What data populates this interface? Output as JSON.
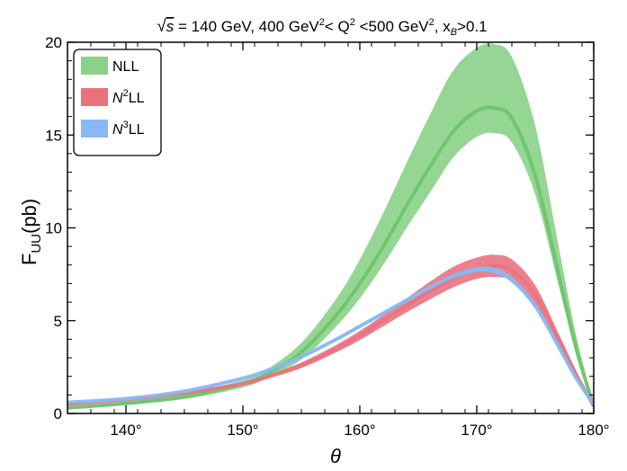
{
  "chart_data": {
    "type": "area",
    "title_parts": {
      "root": "√",
      "s": "s",
      "energy": " = 140 GeV, 400 GeV",
      "sup1": "2",
      "mid": "< Q",
      "sup2": "2",
      "mid2": " <500 GeV",
      "sup3": "2",
      "comma": ", x",
      "sub": "B",
      "tail": ">0.1"
    },
    "xlabel": "θ",
    "ylabel_main": "F",
    "ylabel_sub": "UU",
    "ylabel_tail": "(pb)",
    "xlim": [
      135,
      180
    ],
    "ylim": [
      0,
      20
    ],
    "x_ticks": [
      140,
      150,
      160,
      170,
      180
    ],
    "x_tick_labels": [
      "140°",
      "150°",
      "160°",
      "170°",
      "180°"
    ],
    "y_ticks": [
      0,
      5,
      10,
      15,
      20
    ],
    "y_tick_labels": [
      "0",
      "5",
      "10",
      "15",
      "20"
    ],
    "legend_position": "top-left",
    "series": [
      {
        "name": "NLL",
        "name_main": "NLL",
        "name_sup": "",
        "name_tail": "",
        "color": "#6cc46a",
        "fill_color": "#8bd189",
        "x": [
          135,
          140,
          145,
          150,
          152,
          155,
          158,
          160,
          162,
          164,
          166,
          168,
          170,
          171.5,
          173,
          175,
          177,
          178.5,
          180
        ],
        "central": [
          0.3,
          0.55,
          0.9,
          1.6,
          2.1,
          3.3,
          5.3,
          7.0,
          9.0,
          11.2,
          13.3,
          15.2,
          16.3,
          16.45,
          15.9,
          12.8,
          7.5,
          3.5,
          0.4
        ],
        "upper": [
          0.38,
          0.65,
          1.05,
          1.8,
          2.35,
          3.8,
          6.2,
          8.3,
          10.8,
          13.5,
          16.1,
          18.5,
          19.7,
          19.9,
          19.2,
          15.5,
          9.0,
          4.2,
          0.5
        ],
        "lower": [
          0.22,
          0.45,
          0.78,
          1.4,
          1.9,
          2.9,
          4.7,
          6.2,
          8.0,
          10.0,
          11.9,
          13.8,
          14.9,
          15.1,
          14.6,
          11.8,
          6.9,
          3.2,
          0.3
        ]
      },
      {
        "name": "N2LL",
        "name_main": "N",
        "name_sup": "2",
        "name_tail": "LL",
        "color": "#e8737f",
        "fill_color": "#e8737f",
        "x": [
          135,
          140,
          145,
          150,
          152,
          155,
          158,
          160,
          162,
          164,
          166,
          168,
          170,
          171.5,
          173,
          175,
          177,
          178.5,
          180
        ],
        "central": [
          0.5,
          0.75,
          1.1,
          1.6,
          1.95,
          2.6,
          3.5,
          4.2,
          5.0,
          5.8,
          6.6,
          7.3,
          7.8,
          7.95,
          7.7,
          6.4,
          4.0,
          2.1,
          0.4
        ],
        "upper": [
          0.55,
          0.8,
          1.15,
          1.68,
          2.05,
          2.75,
          3.7,
          4.45,
          5.3,
          6.2,
          7.1,
          7.9,
          8.4,
          8.55,
          8.3,
          6.9,
          4.3,
          2.3,
          0.45
        ],
        "lower": [
          0.45,
          0.7,
          1.05,
          1.52,
          1.85,
          2.45,
          3.3,
          3.95,
          4.7,
          5.45,
          6.15,
          6.8,
          7.25,
          7.35,
          7.15,
          5.9,
          3.7,
          1.9,
          0.35
        ]
      },
      {
        "name": "N3LL",
        "name_main": "N",
        "name_sup": "3",
        "name_tail": "LL",
        "color": "#8ab8f5",
        "fill_color": "#8ab8f5",
        "x": [
          135,
          140,
          145,
          150,
          152,
          155,
          158,
          160,
          162,
          164,
          166,
          168,
          170,
          171.5,
          173,
          175,
          177,
          178.5,
          180
        ],
        "central": [
          0.6,
          0.8,
          1.2,
          1.9,
          2.3,
          3.05,
          4.0,
          4.7,
          5.4,
          6.1,
          6.8,
          7.4,
          7.75,
          7.7,
          7.2,
          5.8,
          3.6,
          1.9,
          0.5
        ],
        "upper": [
          0.65,
          0.85,
          1.25,
          1.95,
          2.36,
          3.12,
          4.08,
          4.78,
          5.48,
          6.2,
          6.9,
          7.52,
          7.88,
          7.85,
          7.35,
          5.95,
          3.72,
          1.98,
          0.55
        ],
        "lower": [
          0.55,
          0.75,
          1.15,
          1.85,
          2.24,
          2.98,
          3.92,
          4.62,
          5.32,
          6.0,
          6.7,
          7.28,
          7.62,
          7.55,
          7.05,
          5.65,
          3.48,
          1.82,
          0.45
        ]
      }
    ]
  }
}
